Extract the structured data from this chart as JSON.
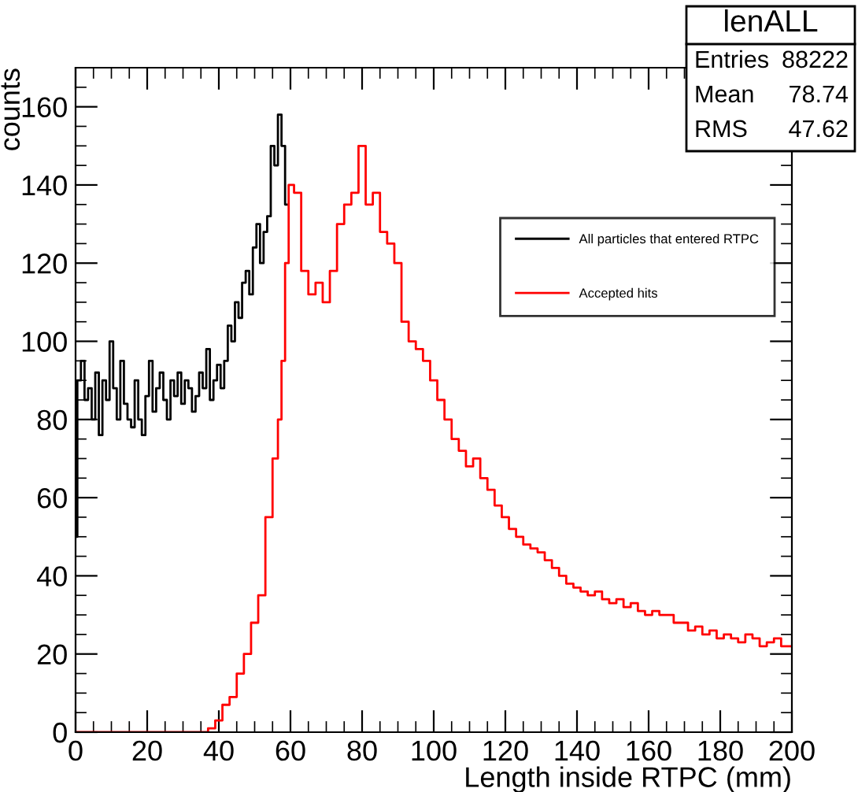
{
  "chart_data": {
    "type": "step",
    "xlabel": "Length inside RTPC (mm)",
    "ylabel": "counts",
    "xlim": [
      0,
      200
    ],
    "ylim": [
      0,
      170
    ],
    "xticks": [
      0,
      20,
      40,
      60,
      80,
      100,
      120,
      140,
      160,
      180,
      200
    ],
    "yticks": [
      0,
      20,
      40,
      60,
      80,
      100,
      120,
      140,
      160
    ],
    "grid": false,
    "legend": "right",
    "line_style": "solid",
    "marker": "none",
    "annotations": [
      "lenALL",
      "Entries",
      "88222",
      "Mean",
      "78.74",
      "RMS",
      "47.62"
    ],
    "series": [
      {
        "name": "All particles that entered RTPC",
        "color": "#000000",
        "x": [
          0,
          1,
          2,
          3,
          4,
          5,
          6,
          7,
          8,
          9,
          10,
          11,
          12,
          13,
          14,
          15,
          16,
          17,
          18,
          19,
          20,
          21,
          22,
          23,
          24,
          25,
          26,
          27,
          28,
          29,
          30,
          31,
          32,
          33,
          34,
          35,
          36,
          37,
          38,
          39,
          40,
          41,
          42,
          43,
          44,
          45,
          46,
          47,
          48,
          49,
          50,
          51,
          52,
          53,
          54,
          55,
          56,
          57,
          58,
          59
        ],
        "values": [
          50,
          90,
          95,
          85,
          88,
          80,
          92,
          76,
          90,
          85,
          100,
          88,
          80,
          95,
          84,
          80,
          78,
          90,
          80,
          76,
          86,
          95,
          82,
          88,
          92,
          85,
          80,
          90,
          86,
          92,
          84,
          90,
          88,
          82,
          86,
          92,
          88,
          98,
          85,
          90,
          94,
          88,
          95,
          104,
          100,
          110,
          106,
          115,
          118,
          112,
          124,
          130,
          120,
          128,
          132,
          150,
          145,
          158,
          150,
          135
        ]
      },
      {
        "name": "Accepted hits",
        "color": "#ff0000",
        "x": [
          0,
          10,
          20,
          30,
          36,
          38,
          40,
          42,
          44,
          46,
          48,
          50,
          52,
          54,
          56,
          57,
          58,
          59,
          60,
          62,
          64,
          66,
          68,
          70,
          72,
          74,
          76,
          78,
          80,
          82,
          84,
          86,
          88,
          90,
          92,
          94,
          96,
          98,
          100,
          102,
          104,
          106,
          108,
          110,
          112,
          114,
          116,
          118,
          120,
          122,
          124,
          126,
          128,
          130,
          132,
          134,
          136,
          138,
          140,
          142,
          144,
          146,
          148,
          150,
          152,
          154,
          156,
          158,
          160,
          162,
          164,
          166,
          168,
          170,
          172,
          174,
          176,
          178,
          180,
          182,
          184,
          186,
          188,
          190,
          192,
          194,
          196,
          198,
          200
        ],
        "values": [
          0,
          0,
          0,
          0,
          0,
          1,
          3,
          7,
          9,
          15,
          20,
          28,
          35,
          55,
          70,
          80,
          95,
          120,
          140,
          138,
          118,
          112,
          115,
          110,
          118,
          130,
          135,
          138,
          150,
          135,
          138,
          128,
          125,
          120,
          105,
          100,
          98,
          95,
          90,
          85,
          80,
          75,
          72,
          68,
          70,
          65,
          62,
          58,
          55,
          52,
          50,
          48,
          47,
          46,
          44,
          42,
          40,
          38,
          37,
          36,
          35,
          36,
          34,
          33,
          34,
          32,
          33,
          31,
          30,
          31,
          30,
          30,
          28,
          28,
          26,
          27,
          25,
          26,
          24,
          25,
          24,
          23,
          25,
          24,
          22,
          23,
          24,
          22,
          22
        ]
      }
    ]
  }
}
